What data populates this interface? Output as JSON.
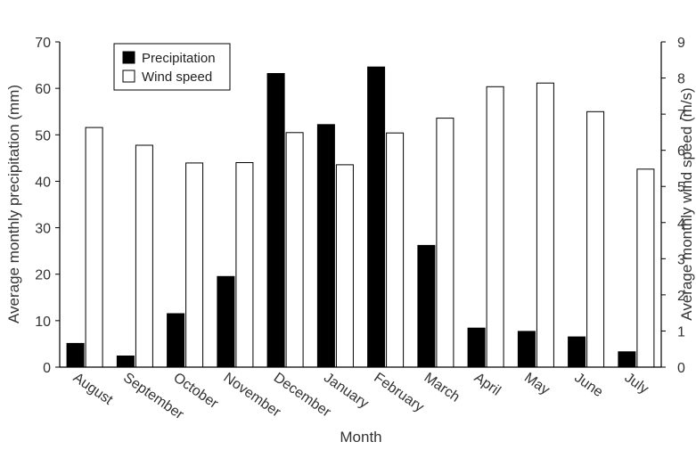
{
  "chart_data": {
    "type": "bar",
    "xlabel": "Month",
    "ylabel_left": "Average monthly precipitation (mm)",
    "ylabel_right": "Average monthly wind speed (m/s)",
    "ylim_left": [
      0,
      70
    ],
    "ylim_right": [
      0,
      9
    ],
    "yticks_left": [
      0,
      10,
      20,
      30,
      40,
      50,
      60,
      70
    ],
    "yticks_right": [
      0,
      1,
      2,
      3,
      4,
      5,
      6,
      7,
      8,
      9
    ],
    "categories": [
      "August",
      "September",
      "October",
      "November",
      "December",
      "January",
      "February",
      "March",
      "April",
      "May",
      "June",
      "July"
    ],
    "series": [
      {
        "name": "Precipitation",
        "axis": "left",
        "color": "#000000",
        "values": [
          5.1,
          2.4,
          11.5,
          19.5,
          63.2,
          52.2,
          64.6,
          26.2,
          8.4,
          7.7,
          6.5,
          3.3
        ]
      },
      {
        "name": "Wind speed",
        "axis": "right",
        "color": "#ffffff",
        "values": [
          6.63,
          6.14,
          5.65,
          5.66,
          6.49,
          5.6,
          6.48,
          6.89,
          7.76,
          7.86,
          7.07,
          5.48
        ]
      }
    ],
    "legend_position": "top-left",
    "grid": false
  }
}
